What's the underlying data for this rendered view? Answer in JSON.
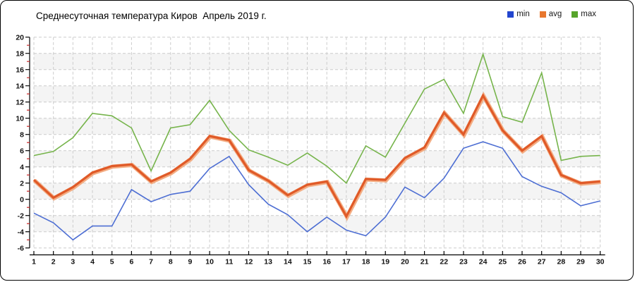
{
  "title": "Среднесуточная температура Киров  Апрель 2019 г.",
  "legend": {
    "items": [
      {
        "label": "min",
        "color": "#2346cf"
      },
      {
        "label": "avg",
        "color": "#e8772e"
      },
      {
        "label": "max",
        "color": "#57a42b"
      }
    ]
  },
  "chart_data": {
    "type": "line",
    "title": "Среднесуточная температура Киров  Апрель 2019 г.",
    "xlabel": "",
    "ylabel": "",
    "x": [
      1,
      2,
      3,
      4,
      5,
      6,
      7,
      8,
      9,
      10,
      11,
      12,
      13,
      14,
      15,
      16,
      17,
      18,
      19,
      20,
      21,
      22,
      23,
      24,
      25,
      26,
      27,
      28,
      29,
      30
    ],
    "series": [
      {
        "name": "min",
        "color": "#4d6ed3",
        "width": 1.6,
        "values": [
          -1.7,
          -2.9,
          -5.0,
          -3.3,
          -3.3,
          1.2,
          -0.3,
          0.6,
          1.0,
          3.8,
          5.3,
          1.8,
          -0.6,
          -1.9,
          -4.0,
          -2.2,
          -3.8,
          -4.5,
          -2.2,
          1.5,
          0.2,
          2.6,
          6.3,
          7.1,
          6.3,
          2.8,
          1.6,
          0.8,
          -0.8,
          -0.2
        ]
      },
      {
        "name": "avg",
        "color": "#e05a28",
        "halo": "#f3ad83",
        "width": 3.2,
        "values": [
          2.4,
          0.2,
          1.5,
          3.3,
          4.1,
          4.3,
          2.2,
          3.3,
          5.0,
          7.8,
          7.3,
          3.6,
          2.3,
          0.5,
          1.8,
          2.2,
          -2.1,
          2.5,
          2.4,
          5.1,
          6.4,
          10.7,
          8.0,
          12.8,
          8.5,
          6.0,
          7.8,
          3.0,
          2.0,
          2.2
        ]
      },
      {
        "name": "max",
        "color": "#76b44b",
        "width": 1.6,
        "values": [
          5.4,
          5.9,
          7.6,
          10.6,
          10.3,
          8.8,
          3.5,
          8.8,
          9.2,
          12.2,
          8.5,
          6.1,
          5.2,
          4.2,
          5.7,
          4.1,
          2.0,
          6.6,
          5.2,
          9.4,
          13.6,
          14.8,
          10.6,
          17.9,
          10.2,
          9.5,
          15.6,
          4.8,
          5.3,
          5.4
        ]
      }
    ],
    "ylim": [
      -6,
      20
    ],
    "ytick_step": 2,
    "yticks": [
      20,
      18,
      16,
      14,
      12,
      10,
      8,
      6,
      4,
      2,
      0,
      -2,
      -4,
      -6
    ],
    "grid": "dashed",
    "legend_position": "top-right",
    "colors": {
      "grid": "#cccccc",
      "band": "#f4f4f4",
      "axis": "#000000",
      "minor_tick": "#cc2222",
      "tick_text": "#111111"
    }
  }
}
